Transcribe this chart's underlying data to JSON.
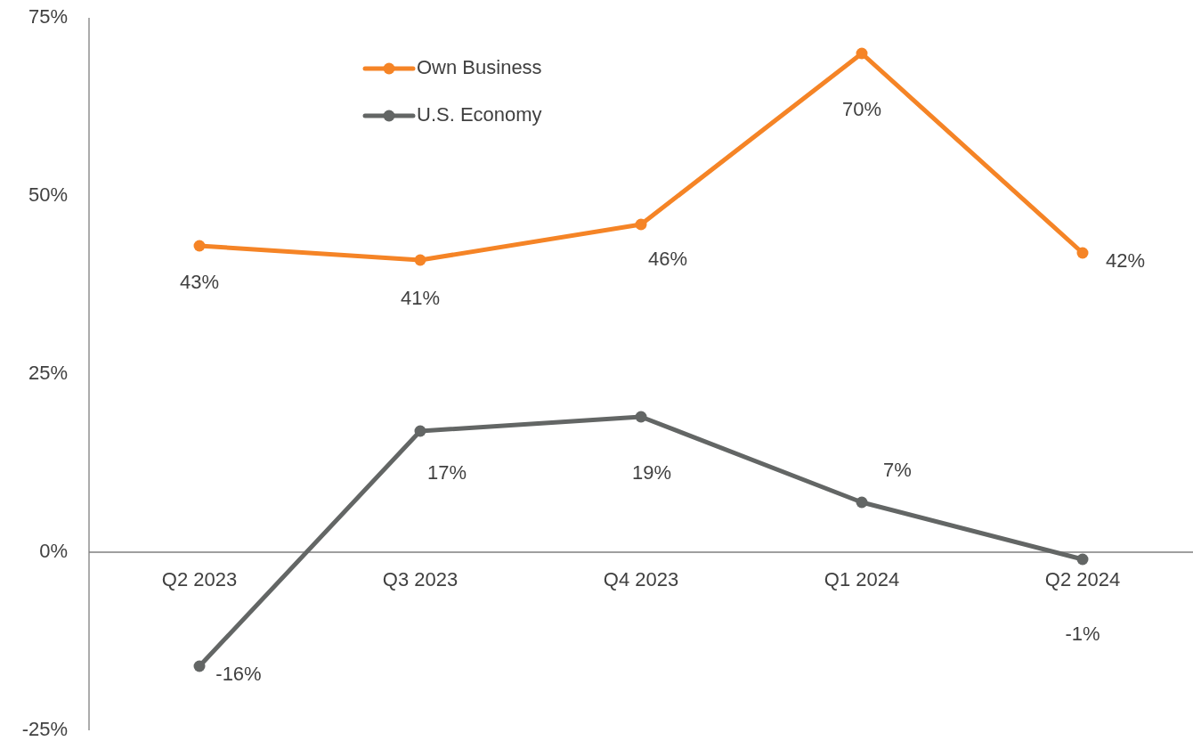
{
  "chart_data": {
    "type": "line",
    "categories": [
      "Q2 2023",
      "Q3 2023",
      "Q4 2023",
      "Q1 2024",
      "Q2 2024"
    ],
    "series": [
      {
        "name": "Own Business",
        "color": "#f58426",
        "values": [
          43,
          41,
          46,
          70,
          42
        ],
        "value_labels": [
          "43%",
          "41%",
          "46%",
          "70%",
          "42%"
        ]
      },
      {
        "name": "U.S. Economy",
        "color": "#636665",
        "values": [
          -16,
          17,
          19,
          7,
          -1
        ],
        "value_labels": [
          "-16%",
          "17%",
          "19%",
          "7%",
          "-1%"
        ]
      }
    ],
    "ylim": [
      -25,
      75
    ],
    "yticks": [
      {
        "value": -25,
        "label": "-25%"
      },
      {
        "value": 0,
        "label": "0%"
      },
      {
        "value": 25,
        "label": "25%"
      },
      {
        "value": 50,
        "label": "50%"
      },
      {
        "value": 75,
        "label": "75%"
      }
    ],
    "legend": "top",
    "marker": "circle",
    "grid": false
  }
}
